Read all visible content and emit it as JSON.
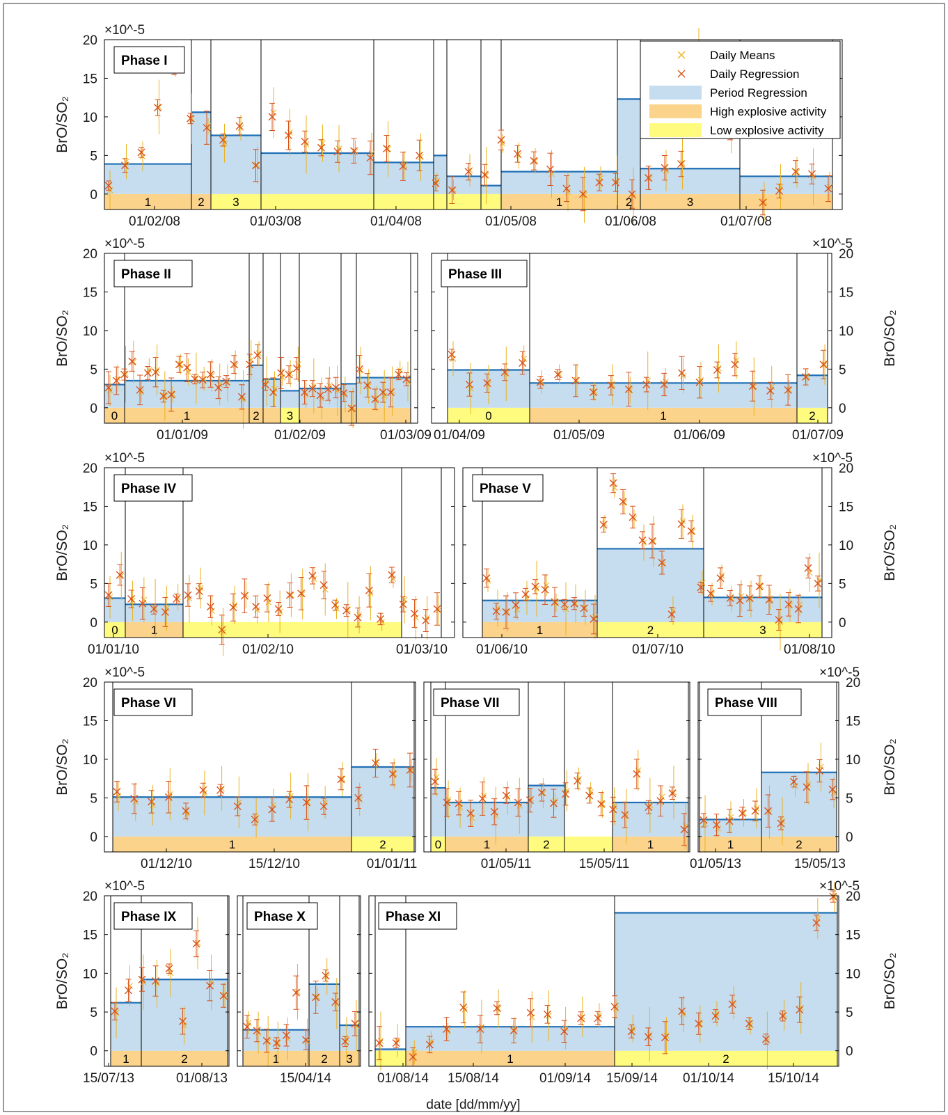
{
  "figure": {
    "xlabel": "date [dd/mm/yy]",
    "colors": {
      "daily_means": "#EDB120",
      "daily_regression": "#D95319",
      "period_regression_fill": "#C5DDEE",
      "period_regression_line": "#1F6FB5",
      "high_explosive": "#FBD38A",
      "low_explosive": "#FEFB7E"
    },
    "legend": {
      "items": [
        "Daily Means",
        "Daily Regression",
        "Period Regression",
        "High explosive activity",
        "Low explosive activity"
      ]
    }
  },
  "chart_data": [
    {
      "type": "bar",
      "title": "Phase I",
      "ylabel": "BrO/SO₂",
      "y_exponent": "×10^-5",
      "ylim": [
        -2,
        20
      ],
      "yticks": [
        0,
        5,
        10,
        15,
        20
      ],
      "xticks": [
        "01/02/08",
        "01/03/08",
        "01/04/08",
        "01/05/08",
        "01/06/08",
        "01/07/08"
      ],
      "periods": [
        {
          "label": "1",
          "activity": "high",
          "value": 3.9
        },
        {
          "label": "2",
          "activity": "high",
          "value": 10.6
        },
        {
          "label": "3",
          "activity": "low",
          "value": 7.6
        },
        {
          "label": "",
          "activity": "low",
          "value": 5.3
        },
        {
          "label": "",
          "activity": "low",
          "value": 4.1
        },
        {
          "label": "",
          "activity": "low",
          "value": 5.0
        },
        {
          "label": "",
          "activity": "low",
          "value": 2.3
        },
        {
          "label": "",
          "activity": "low",
          "value": 1.1
        },
        {
          "label": "1",
          "activity": "high",
          "value": 2.9
        },
        {
          "label": "2",
          "activity": "high",
          "value": 12.3
        },
        {
          "label": "3",
          "activity": "high",
          "value": 3.3
        },
        {
          "label": "",
          "activity": "high",
          "value": 2.3
        }
      ],
      "series": [
        {
          "name": "Daily Regression",
          "values": [
            1.1,
            3.7,
            5.4,
            11.2,
            16.4,
            9.8,
            8.6,
            7.0,
            8.8,
            3.7,
            10.0,
            7.6,
            6.8,
            6.0,
            5.5,
            5.6,
            4.7,
            5.9,
            3.6,
            5.0,
            1.4,
            0.5,
            2.9,
            2.5,
            7.0,
            5.2,
            4.3,
            3.2,
            0.7,
            0.0,
            1.5,
            1.5,
            0.0,
            2.1,
            3.4,
            3.9,
            17.3,
            13.0,
            8.0,
            11.0,
            -1.1,
            0.4,
            2.9,
            2.6,
            0.7
          ]
        }
      ]
    },
    {
      "type": "bar",
      "title": "Phase II",
      "ylabel": "BrO/SO₂",
      "y_exponent": "×10^-5",
      "ylim": [
        -2,
        20
      ],
      "yticks": [
        0,
        5,
        10,
        15,
        20
      ],
      "xticks": [
        "01/01/09",
        "01/02/09",
        "01/03/09"
      ],
      "periods": [
        {
          "label": "0",
          "activity": "high",
          "value": 3.0
        },
        {
          "label": "1",
          "activity": "high",
          "value": 3.5
        },
        {
          "label": "2",
          "activity": "high",
          "value": 5.5
        },
        {
          "label": "",
          "activity": "high",
          "value": 3.7
        },
        {
          "label": "3",
          "activity": "low",
          "value": 2.2
        },
        {
          "label": "",
          "activity": "high",
          "value": 2.5
        },
        {
          "label": "",
          "activity": "high",
          "value": 3.1
        },
        {
          "label": "",
          "activity": "high",
          "value": 3.9
        }
      ],
      "series": [
        {
          "name": "Daily Regression",
          "values": [
            2.6,
            3.5,
            4.3,
            6.0,
            2.3,
            4.5,
            4.6,
            1.5,
            1.7,
            5.6,
            5.2,
            3.7,
            3.6,
            4.3,
            2.6,
            3.4,
            5.6,
            1.4,
            5.6,
            6.8,
            3.0,
            2.0,
            4.5,
            4.3,
            5.1,
            2.0,
            2.5,
            1.6,
            2.4,
            2.6,
            1.9,
            -0.1,
            5.0,
            2.9,
            1.1,
            2.0,
            2.0,
            4.3,
            3.7
          ]
        }
      ]
    },
    {
      "type": "bar",
      "title": "Phase III",
      "ylabel": "BrO/SO₂",
      "y_exponent": "×10^-5",
      "ylim": [
        -2,
        20
      ],
      "yticks": [
        0,
        5,
        10,
        15,
        20
      ],
      "xticks": [
        "01/04/09",
        "01/05/09",
        "01/06/09",
        "01/07/09"
      ],
      "periods": [
        {
          "label": "0",
          "activity": "low",
          "value": 4.9
        },
        {
          "label": "1",
          "activity": "high",
          "value": 3.2
        },
        {
          "label": "2",
          "activity": "low",
          "value": 4.2
        }
      ],
      "series": [
        {
          "name": "Daily Regression",
          "values": [
            6.9,
            3.0,
            3.2,
            4.6,
            5.8,
            3.3,
            4.3,
            3.5,
            2.0,
            2.9,
            2.4,
            3.0,
            3.0,
            4.5,
            3.3,
            4.9,
            5.6,
            2.8,
            2.2,
            2.3,
            4.0,
            5.6
          ]
        }
      ]
    },
    {
      "type": "bar",
      "title": "Phase IV",
      "ylabel": "BrO/SO₂",
      "y_exponent": "×10^-5",
      "ylim": [
        -2,
        20
      ],
      "yticks": [
        0,
        5,
        10,
        15,
        20
      ],
      "xticks": [
        "01/01/10",
        "01/02/10",
        "01/03/10"
      ],
      "periods": [
        {
          "label": "0",
          "activity": "low",
          "value": 3.1
        },
        {
          "label": "1",
          "activity": "high",
          "value": 2.3
        },
        {
          "label": "",
          "activity": "low",
          "value": null
        }
      ],
      "series": [
        {
          "name": "Daily Regression",
          "values": [
            3.5,
            6.1,
            3.0,
            2.4,
            1.7,
            1.3,
            3.0,
            3.5,
            4.0,
            2.0,
            -1.0,
            1.9,
            3.4,
            2.0,
            3.1,
            1.7,
            3.5,
            3.7,
            6.0,
            4.8,
            2.2,
            1.5,
            0.6,
            4.1,
            0.4,
            6.1,
            2.3,
            1.1,
            0.2,
            1.7
          ]
        }
      ]
    },
    {
      "type": "bar",
      "title": "Phase V",
      "ylabel": "BrO/SO₂",
      "y_exponent": "×10^-5",
      "ylim": [
        -2,
        20
      ],
      "yticks": [
        0,
        5,
        10,
        15,
        20
      ],
      "xticks": [
        "01/06/10",
        "01/07/10",
        "01/08/10"
      ],
      "periods": [
        {
          "label": "1",
          "activity": "high",
          "value": 2.8
        },
        {
          "label": "2",
          "activity": "low",
          "value": 9.5
        },
        {
          "label": "3",
          "activity": "low",
          "value": 3.2
        }
      ],
      "series": [
        {
          "name": "Daily Regression",
          "values": [
            5.7,
            1.4,
            1.3,
            2.2,
            3.6,
            4.6,
            4.2,
            2.6,
            2.3,
            2.4,
            1.8,
            0.4,
            12.6,
            18.0,
            15.6,
            13.6,
            10.6,
            10.5,
            7.7,
            1.0,
            12.7,
            11.8,
            4.5,
            3.7,
            5.7,
            3.1,
            2.8,
            3.1,
            4.6,
            2.9,
            0.3,
            2.3,
            1.7,
            7.0,
            5.0
          ]
        }
      ]
    },
    {
      "type": "bar",
      "title": "Phase VI",
      "ylabel": "BrO/SO₂",
      "y_exponent": "×10^-5",
      "ylim": [
        -2,
        20
      ],
      "yticks": [
        0,
        5,
        10,
        15,
        20
      ],
      "xticks": [
        "01/12/10",
        "15/12/10",
        "01/01/11"
      ],
      "periods": [
        {
          "label": "1",
          "activity": "high",
          "value": 5.1
        },
        {
          "label": "2",
          "activity": "low",
          "value": 9.0
        }
      ],
      "series": [
        {
          "name": "Daily Regression",
          "values": [
            5.8,
            4.9,
            4.5,
            5.1,
            3.3,
            6.0,
            6.0,
            3.9,
            2.2,
            3.5,
            4.8,
            4.4,
            3.9,
            7.4,
            5.0,
            9.5,
            8.1,
            8.6
          ]
        }
      ]
    },
    {
      "type": "bar",
      "title": "Phase VII",
      "ylabel": "BrO/SO₂",
      "y_exponent": "×10^-5",
      "ylim": [
        -2,
        20
      ],
      "yticks": [
        0,
        5,
        10,
        15,
        20
      ],
      "xticks": [
        "01/05/11",
        "15/05/11"
      ],
      "periods": [
        {
          "label": "0",
          "activity": "low",
          "value": 6.3
        },
        {
          "label": "1",
          "activity": "high",
          "value": 4.4
        },
        {
          "label": "2",
          "activity": "low",
          "value": 6.6
        },
        {
          "label": "",
          "activity": "low",
          "value": null
        },
        {
          "label": "1",
          "activity": "high",
          "value": 4.4
        }
      ],
      "series": [
        {
          "name": "Daily Regression",
          "values": [
            7.1,
            4.4,
            4.3,
            3.0,
            4.9,
            3.2,
            5.3,
            4.4,
            4.7,
            5.7,
            4.3,
            5.5,
            7.2,
            5.3,
            4.2,
            3.5,
            2.8,
            8.1,
            3.8,
            4.6,
            5.6,
            0.9
          ]
        }
      ]
    },
    {
      "type": "bar",
      "title": "Phase VIII",
      "ylabel": "BrO/SO₂",
      "y_exponent": "×10^-5",
      "ylim": [
        -2,
        20
      ],
      "yticks": [
        0,
        5,
        10,
        15,
        20
      ],
      "xticks": [
        "01/05/13",
        "15/05/13"
      ],
      "periods": [
        {
          "label": "1",
          "activity": "high",
          "value": 2.2
        },
        {
          "label": "2",
          "activity": "high",
          "value": 8.3
        }
      ],
      "series": [
        {
          "name": "Daily Regression",
          "values": [
            2.1,
            1.5,
            2.0,
            3.0,
            3.3,
            3.3,
            1.7,
            7.1,
            6.4,
            8.5,
            6.1
          ]
        }
      ]
    },
    {
      "type": "bar",
      "title": "Phase IX",
      "ylabel": "BrO/SO₂",
      "y_exponent": "×10^-5",
      "ylim": [
        -2,
        20
      ],
      "yticks": [
        0,
        5,
        10,
        15,
        20
      ],
      "xticks": [
        "15/07/13",
        "01/08/13"
      ],
      "periods": [
        {
          "label": "1",
          "activity": "high",
          "value": 6.2
        },
        {
          "label": "2",
          "activity": "high",
          "value": 9.2
        }
      ],
      "series": [
        {
          "name": "Daily Regression",
          "values": [
            5.1,
            7.8,
            9.2,
            9.0,
            10.6,
            3.8,
            13.8,
            8.4,
            7.1
          ]
        }
      ]
    },
    {
      "type": "bar",
      "title": "Phase X",
      "ylabel": "BrO/SO₂",
      "y_exponent": "×10^-5",
      "ylim": [
        -2,
        20
      ],
      "yticks": [
        0,
        5,
        10,
        15,
        20
      ],
      "xticks": [
        "15/04/14"
      ],
      "periods": [
        {
          "label": "1",
          "activity": "high",
          "value": 2.7
        },
        {
          "label": "2",
          "activity": "high",
          "value": 8.6
        },
        {
          "label": "3",
          "activity": "high",
          "value": 3.3
        }
      ],
      "series": [
        {
          "name": "Daily Regression",
          "values": [
            3.1,
            2.6,
            1.3,
            1.0,
            2.0,
            7.5,
            1.4,
            6.9,
            9.7,
            6.3,
            1.2,
            3.5
          ]
        }
      ]
    },
    {
      "type": "bar",
      "title": "Phase XI",
      "ylabel": "BrO/SO₂",
      "y_exponent": "×10^-5",
      "ylim": [
        -2,
        20
      ],
      "yticks": [
        0,
        5,
        10,
        15,
        20
      ],
      "xticks": [
        "01/08/14",
        "15/08/14",
        "01/09/14",
        "15/09/14",
        "01/10/14",
        "15/10/14"
      ],
      "periods": [
        {
          "label": "",
          "activity": "low",
          "value": 0.2
        },
        {
          "label": "1",
          "activity": "high",
          "value": 3.1
        },
        {
          "label": "2",
          "activity": "low",
          "value": 17.8
        }
      ],
      "series": [
        {
          "name": "Daily Regression",
          "values": [
            1.0,
            1.0,
            -0.8,
            0.8,
            2.8,
            5.6,
            2.8,
            5.5,
            2.6,
            4.9,
            4.7,
            2.5,
            4.2,
            4.2,
            5.7,
            2.5,
            1.8,
            1.7,
            5.1,
            3.5,
            4.5,
            6.0,
            3.5,
            1.5,
            4.5,
            5.3,
            16.5,
            19.9
          ]
        }
      ]
    }
  ]
}
